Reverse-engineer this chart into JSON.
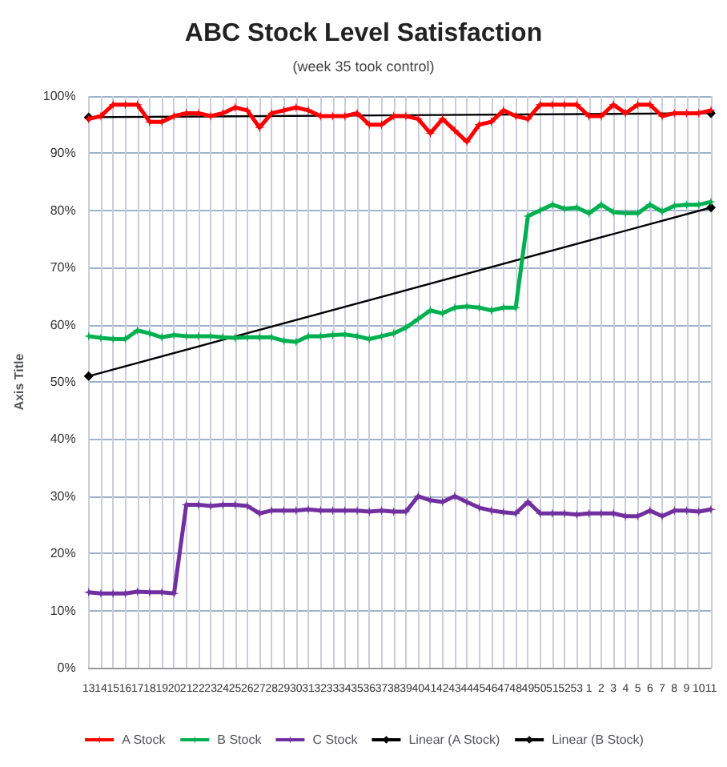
{
  "chart_data": {
    "type": "line",
    "title": "ABC Stock Level Satisfaction",
    "subtitle": "(week 35 took control)",
    "ylabel": "Axis Title",
    "categories": [
      "13",
      "14",
      "15",
      "16",
      "17",
      "18",
      "19",
      "20",
      "21",
      "22",
      "23",
      "24",
      "25",
      "26",
      "27",
      "28",
      "29",
      "30",
      "31",
      "32",
      "33",
      "34",
      "35",
      "36",
      "37",
      "38",
      "39",
      "40",
      "41",
      "42",
      "43",
      "44",
      "45",
      "46",
      "47",
      "48",
      "49",
      "50",
      "51",
      "52",
      "53",
      "1",
      "2",
      "3",
      "4",
      "5",
      "6",
      "7",
      "8",
      "9",
      "10",
      "11"
    ],
    "series": [
      {
        "name": "A Stock",
        "color": "#ff0000",
        "values": [
          96,
          96.5,
          98.5,
          98.5,
          98.5,
          95.5,
          95.5,
          96.5,
          97,
          97,
          96.5,
          97,
          98,
          97.5,
          94.5,
          97,
          97.5,
          98,
          97.5,
          96.5,
          96.5,
          96.5,
          97,
          95,
          95,
          96.5,
          96.5,
          96,
          93.5,
          96,
          94,
          92,
          95,
          95.5,
          97.5,
          96.5,
          96,
          98.5,
          98.5,
          98.5,
          98.5,
          96.5,
          96.5,
          98.5,
          97,
          98.5,
          98.5,
          96.5,
          97,
          97,
          97,
          97.5
        ]
      },
      {
        "name": "B Stock",
        "color": "#00b050",
        "values": [
          58,
          57.7,
          57.5,
          57.5,
          59,
          58.5,
          57.8,
          58.2,
          58,
          58,
          58,
          57.8,
          57.7,
          57.8,
          57.8,
          57.8,
          57.2,
          57,
          58,
          58,
          58.2,
          58.3,
          58,
          57.5,
          58,
          58.5,
          59.5,
          61,
          62.5,
          62,
          63,
          63.2,
          63,
          62.5,
          63,
          63,
          79,
          80,
          81,
          80.3,
          80.5,
          79.5,
          81,
          79.7,
          79.5,
          79.5,
          81,
          79.8,
          80.8,
          81,
          81,
          81.5
        ]
      },
      {
        "name": "C Stock",
        "color": "#7030a0",
        "values": [
          13.2,
          13,
          13,
          13,
          13.3,
          13.2,
          13.2,
          13,
          28.5,
          28.5,
          28.3,
          28.5,
          28.5,
          28.3,
          27,
          27.5,
          27.5,
          27.5,
          27.7,
          27.5,
          27.5,
          27.5,
          27.5,
          27.3,
          27.5,
          27.3,
          27.3,
          30,
          29.3,
          29,
          30,
          29,
          28,
          27.5,
          27.2,
          27,
          29,
          27,
          27,
          27,
          26.8,
          27,
          27,
          27,
          26.5,
          26.5,
          27.5,
          26.5,
          27.5,
          27.5,
          27.3,
          27.7
        ]
      },
      {
        "name": "Linear (A Stock)",
        "color": "#000000",
        "marker": "diamond",
        "values": [
          96.3,
          null,
          null,
          null,
          null,
          null,
          null,
          null,
          null,
          null,
          null,
          null,
          null,
          null,
          null,
          null,
          null,
          null,
          null,
          null,
          null,
          null,
          null,
          null,
          null,
          null,
          null,
          null,
          null,
          null,
          null,
          null,
          null,
          null,
          null,
          null,
          null,
          null,
          null,
          null,
          null,
          null,
          null,
          null,
          null,
          null,
          null,
          null,
          null,
          null,
          null,
          97
        ]
      },
      {
        "name": "Linear (B Stock)",
        "color": "#000000",
        "marker": "diamond",
        "values": [
          51,
          null,
          null,
          null,
          null,
          null,
          null,
          null,
          null,
          null,
          null,
          null,
          null,
          null,
          null,
          null,
          null,
          null,
          null,
          null,
          null,
          null,
          null,
          null,
          null,
          null,
          null,
          null,
          null,
          null,
          null,
          null,
          null,
          null,
          null,
          null,
          null,
          null,
          null,
          null,
          null,
          null,
          null,
          null,
          null,
          null,
          null,
          null,
          null,
          null,
          null,
          80.5
        ]
      }
    ],
    "ylim": [
      0,
      100
    ],
    "yticks": [
      {
        "value": 0,
        "label": "0%"
      },
      {
        "value": 10,
        "label": "10%"
      },
      {
        "value": 20,
        "label": "20%"
      },
      {
        "value": 30,
        "label": "30%"
      },
      {
        "value": 40,
        "label": "40%"
      },
      {
        "value": 50,
        "label": "50%"
      },
      {
        "value": 60,
        "label": "60%"
      },
      {
        "value": 70,
        "label": "70%"
      },
      {
        "value": 80,
        "label": "80%"
      },
      {
        "value": 90,
        "label": "90%"
      },
      {
        "value": 100,
        "label": "100%"
      }
    ],
    "grid": true,
    "legend": "bottom",
    "marker": "star"
  }
}
